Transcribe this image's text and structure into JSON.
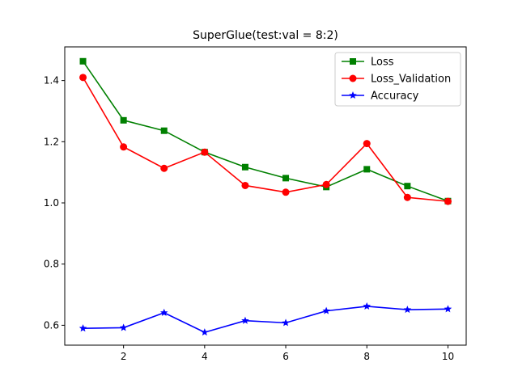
{
  "chart_data": {
    "type": "line",
    "title": "SuperGlue(test:val = 8:2)",
    "xlabel": "",
    "ylabel": "",
    "x": [
      1,
      2,
      3,
      4,
      5,
      6,
      7,
      8,
      9,
      10
    ],
    "xlim": [
      0.55,
      10.45
    ],
    "ylim": [
      0.535,
      1.51
    ],
    "xticks": [
      2,
      4,
      6,
      8,
      10
    ],
    "yticks": [
      0.6,
      0.8,
      1.0,
      1.2,
      1.4
    ],
    "ytick_labels": [
      "0.6",
      "0.8",
      "1.0",
      "1.2",
      "1.4"
    ],
    "grid": false,
    "legend_position": "top-right",
    "series": [
      {
        "name": "Loss",
        "color": "#008000",
        "marker": "square",
        "values": [
          1.463,
          1.27,
          1.236,
          1.166,
          1.117,
          1.081,
          1.052,
          1.11,
          1.055,
          1.006
        ]
      },
      {
        "name": "Loss_Validation",
        "color": "#ff0000",
        "marker": "circle",
        "values": [
          1.41,
          1.183,
          1.113,
          1.166,
          1.057,
          1.035,
          1.06,
          1.194,
          1.018,
          1.005
        ]
      },
      {
        "name": "Accuracy",
        "color": "#0000ff",
        "marker": "star",
        "values": [
          0.59,
          0.592,
          0.641,
          0.577,
          0.615,
          0.608,
          0.647,
          0.662,
          0.651,
          0.653
        ]
      }
    ]
  }
}
